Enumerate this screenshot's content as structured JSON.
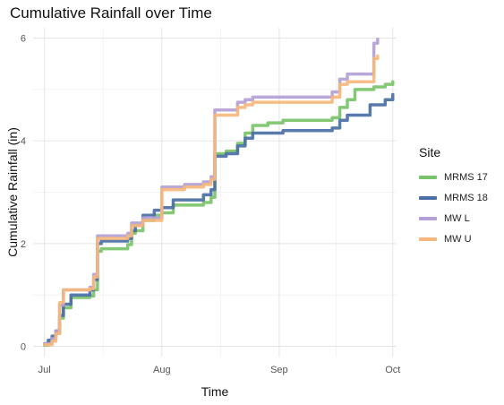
{
  "chart_data": {
    "type": "line",
    "title": "Cumulative Rainfall over Time",
    "xlabel": "Time",
    "ylabel": "Cumulative Rainfall (in)",
    "legend_title": "Site",
    "legend_position": "right",
    "grid": true,
    "ylim": [
      -0.2,
      6.2
    ],
    "xlim": [
      "2023-06-28",
      "2023-10-02"
    ],
    "x_ticks": [
      {
        "date": "2023-07-01",
        "label": "Jul"
      },
      {
        "date": "2023-08-01",
        "label": "Aug"
      },
      {
        "date": "2023-09-01",
        "label": "Sep"
      },
      {
        "date": "2023-10-01",
        "label": "Oct"
      }
    ],
    "y_ticks": [
      0,
      2,
      4,
      6
    ],
    "series": [
      {
        "name": "MRMS 17",
        "color": "#79c36a",
        "points": [
          [
            "2023-07-01",
            0.02
          ],
          [
            "2023-07-02",
            0.08
          ],
          [
            "2023-07-03",
            0.15
          ],
          [
            "2023-07-04",
            0.25
          ],
          [
            "2023-07-05",
            0.55
          ],
          [
            "2023-07-06",
            0.75
          ],
          [
            "2023-07-08",
            0.95
          ],
          [
            "2023-07-13",
            0.98
          ],
          [
            "2023-07-14",
            1.1
          ],
          [
            "2023-07-15",
            1.85
          ],
          [
            "2023-07-16",
            1.9
          ],
          [
            "2023-07-23",
            1.98
          ],
          [
            "2023-07-24",
            2.2
          ],
          [
            "2023-07-25",
            2.25
          ],
          [
            "2023-07-27",
            2.45
          ],
          [
            "2023-07-30",
            2.55
          ],
          [
            "2023-08-01",
            2.6
          ],
          [
            "2023-08-04",
            2.75
          ],
          [
            "2023-08-12",
            2.8
          ],
          [
            "2023-08-14",
            2.9
          ],
          [
            "2023-08-15",
            3.75
          ],
          [
            "2023-08-18",
            3.8
          ],
          [
            "2023-08-21",
            3.95
          ],
          [
            "2023-08-23",
            4.15
          ],
          [
            "2023-08-25",
            4.3
          ],
          [
            "2023-08-29",
            4.35
          ],
          [
            "2023-09-02",
            4.4
          ],
          [
            "2023-09-15",
            4.45
          ],
          [
            "2023-09-17",
            4.65
          ],
          [
            "2023-09-19",
            4.8
          ],
          [
            "2023-09-21",
            5.0
          ],
          [
            "2023-09-26",
            5.05
          ],
          [
            "2023-09-29",
            5.1
          ],
          [
            "2023-10-01",
            5.15
          ]
        ]
      },
      {
        "name": "MRMS 18",
        "color": "#4a6fa5",
        "points": [
          [
            "2023-07-01",
            0.05
          ],
          [
            "2023-07-02",
            0.12
          ],
          [
            "2023-07-03",
            0.2
          ],
          [
            "2023-07-04",
            0.3
          ],
          [
            "2023-07-05",
            0.6
          ],
          [
            "2023-07-06",
            0.82
          ],
          [
            "2023-07-08",
            1.0
          ],
          [
            "2023-07-13",
            1.1
          ],
          [
            "2023-07-14",
            1.3
          ],
          [
            "2023-07-15",
            2.0
          ],
          [
            "2023-07-16",
            2.05
          ],
          [
            "2023-07-23",
            2.1
          ],
          [
            "2023-07-24",
            2.25
          ],
          [
            "2023-07-25",
            2.35
          ],
          [
            "2023-07-27",
            2.55
          ],
          [
            "2023-07-30",
            2.65
          ],
          [
            "2023-08-01",
            2.7
          ],
          [
            "2023-08-04",
            2.85
          ],
          [
            "2023-08-12",
            2.95
          ],
          [
            "2023-08-14",
            3.05
          ],
          [
            "2023-08-15",
            3.7
          ],
          [
            "2023-08-18",
            3.75
          ],
          [
            "2023-08-21",
            3.9
          ],
          [
            "2023-08-23",
            4.05
          ],
          [
            "2023-08-25",
            4.15
          ],
          [
            "2023-09-02",
            4.2
          ],
          [
            "2023-09-15",
            4.25
          ],
          [
            "2023-09-17",
            4.4
          ],
          [
            "2023-09-19",
            4.5
          ],
          [
            "2023-09-25",
            4.7
          ],
          [
            "2023-09-29",
            4.8
          ],
          [
            "2023-10-01",
            4.9
          ]
        ]
      },
      {
        "name": "MW L",
        "color": "#b3a0d6",
        "points": [
          [
            "2023-07-01",
            0.05
          ],
          [
            "2023-07-03",
            0.15
          ],
          [
            "2023-07-04",
            0.3
          ],
          [
            "2023-07-05",
            0.8
          ],
          [
            "2023-07-06",
            1.1
          ],
          [
            "2023-07-13",
            1.15
          ],
          [
            "2023-07-14",
            1.4
          ],
          [
            "2023-07-15",
            2.15
          ],
          [
            "2023-07-23",
            2.2
          ],
          [
            "2023-07-24",
            2.4
          ],
          [
            "2023-07-27",
            2.5
          ],
          [
            "2023-08-01",
            3.1
          ],
          [
            "2023-08-07",
            3.15
          ],
          [
            "2023-08-12",
            3.2
          ],
          [
            "2023-08-14",
            3.3
          ],
          [
            "2023-08-15",
            4.6
          ],
          [
            "2023-08-21",
            4.75
          ],
          [
            "2023-08-23",
            4.8
          ],
          [
            "2023-08-25",
            4.85
          ],
          [
            "2023-09-15",
            4.95
          ],
          [
            "2023-09-17",
            5.2
          ],
          [
            "2023-09-19",
            5.3
          ],
          [
            "2023-09-26",
            5.9
          ],
          [
            "2023-09-27",
            5.98
          ]
        ]
      },
      {
        "name": "MW U",
        "color": "#f6b77c",
        "points": [
          [
            "2023-07-01",
            0.03
          ],
          [
            "2023-07-03",
            0.1
          ],
          [
            "2023-07-04",
            0.25
          ],
          [
            "2023-07-05",
            0.85
          ],
          [
            "2023-07-06",
            1.1
          ],
          [
            "2023-07-13",
            1.12
          ],
          [
            "2023-07-14",
            1.35
          ],
          [
            "2023-07-15",
            2.1
          ],
          [
            "2023-07-23",
            2.15
          ],
          [
            "2023-07-24",
            2.35
          ],
          [
            "2023-07-27",
            2.45
          ],
          [
            "2023-08-01",
            3.05
          ],
          [
            "2023-08-07",
            3.1
          ],
          [
            "2023-08-12",
            3.15
          ],
          [
            "2023-08-14",
            3.25
          ],
          [
            "2023-08-15",
            4.5
          ],
          [
            "2023-08-21",
            4.65
          ],
          [
            "2023-08-23",
            4.7
          ],
          [
            "2023-08-25",
            4.75
          ],
          [
            "2023-09-15",
            4.85
          ],
          [
            "2023-09-17",
            5.1
          ],
          [
            "2023-09-19",
            5.15
          ],
          [
            "2023-09-26",
            5.6
          ],
          [
            "2023-09-27",
            5.65
          ]
        ]
      }
    ]
  }
}
